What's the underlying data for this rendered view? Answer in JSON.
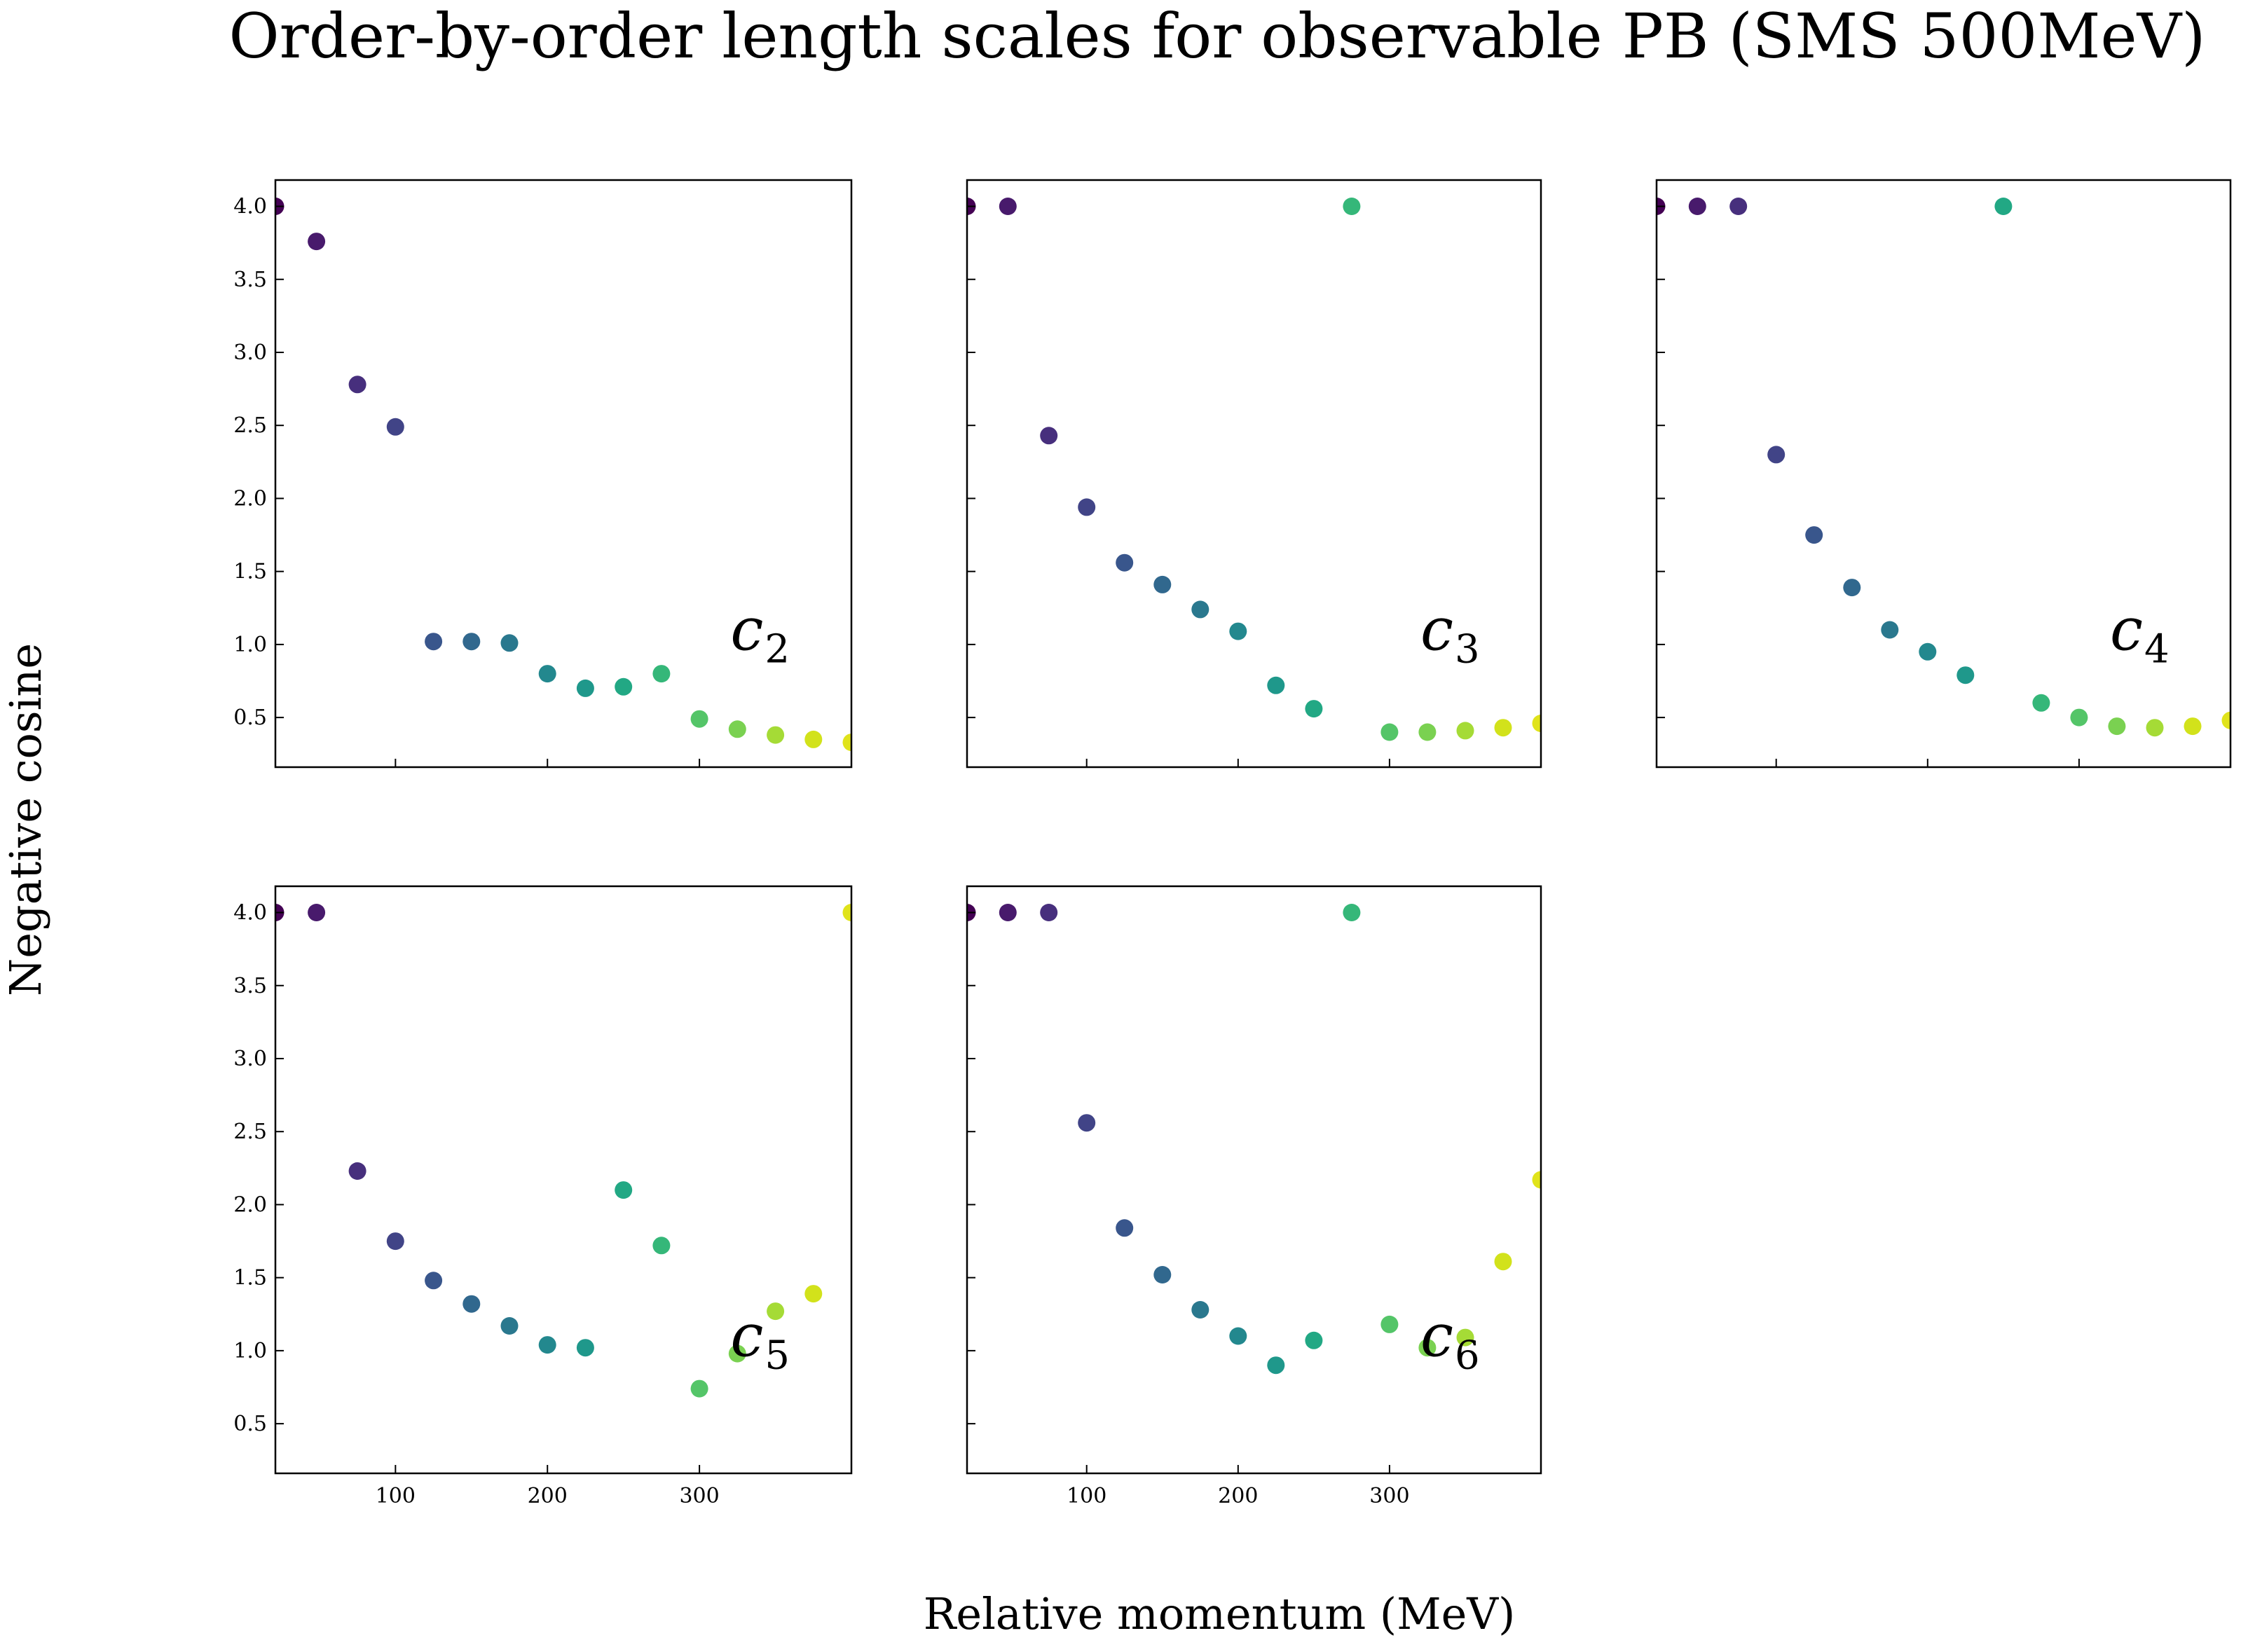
{
  "title": "Order-by-order length scales for observable PB (SMS 500MeV)",
  "xlabel": "Relative momentum (MeV)",
  "ylabel": "Negative cosine",
  "chart_data": {
    "type": "scatter",
    "title": "Order-by-order length scales for observable PB (SMS 500MeV)",
    "xlabel": "Relative momentum (MeV)",
    "ylabel": "Negative cosine",
    "x": [
      21,
      48,
      75,
      100,
      125,
      150,
      175,
      200,
      225,
      250,
      275,
      300,
      325,
      350,
      375,
      400
    ],
    "xlim": [
      21,
      400
    ],
    "ylim": [
      0.16,
      4.18
    ],
    "xticks": [
      100,
      200,
      300
    ],
    "yticks": [
      0.5,
      1.0,
      1.5,
      2.0,
      2.5,
      3.0,
      3.5,
      4.0
    ],
    "ytick_labels": [
      "0.5",
      "1.0",
      "1.5",
      "2.0",
      "2.5",
      "3.0",
      "3.5",
      "4.0"
    ],
    "xtick_labels": [
      "100",
      "200",
      "300"
    ],
    "colormap": "viridis",
    "colors": [
      "#440154",
      "#481a6c",
      "#472f7d",
      "#414487",
      "#39568c",
      "#31688e",
      "#2a788e",
      "#23888e",
      "#1f988b",
      "#22a884",
      "#35b779",
      "#54c568",
      "#7ad151",
      "#a5db36",
      "#d2e21b",
      "#e0e31b"
    ],
    "grid": false,
    "legend": "none",
    "panels": [
      {
        "label": "c",
        "sub": "2",
        "y": [
          4.0,
          3.76,
          2.78,
          2.49,
          1.02,
          1.02,
          1.01,
          0.8,
          0.7,
          0.71,
          0.8,
          0.49,
          0.42,
          0.38,
          0.35,
          0.33
        ]
      },
      {
        "label": "c",
        "sub": "3",
        "y": [
          4.0,
          4.0,
          2.43,
          1.94,
          1.56,
          1.41,
          1.24,
          1.09,
          0.72,
          0.56,
          4.0,
          0.4,
          0.4,
          0.41,
          0.43,
          0.46
        ]
      },
      {
        "label": "c",
        "sub": "4",
        "y": [
          4.0,
          4.0,
          4.0,
          2.3,
          1.75,
          1.39,
          1.1,
          0.95,
          0.79,
          4.0,
          0.6,
          0.5,
          0.44,
          0.43,
          0.44,
          0.48
        ]
      },
      {
        "label": "c",
        "sub": "5",
        "y": [
          4.0,
          4.0,
          2.23,
          1.75,
          1.48,
          1.32,
          1.17,
          1.04,
          1.02,
          2.1,
          1.72,
          0.74,
          0.98,
          1.27,
          1.39,
          4.0
        ]
      },
      {
        "label": "c",
        "sub": "6",
        "y": [
          4.0,
          4.0,
          4.0,
          2.56,
          1.84,
          1.52,
          1.28,
          1.1,
          0.9,
          1.07,
          4.0,
          1.18,
          1.02,
          1.09,
          1.61,
          2.17
        ]
      }
    ]
  }
}
